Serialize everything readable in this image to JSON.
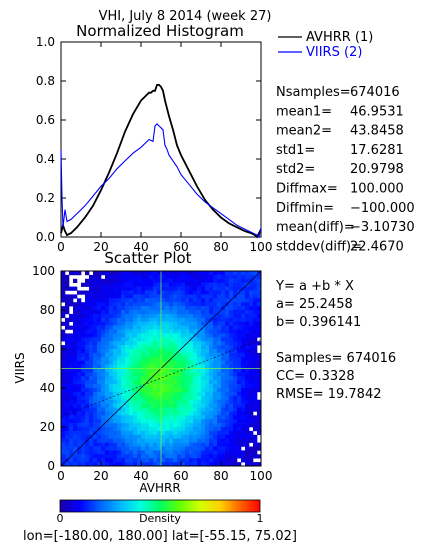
{
  "header": {
    "super_title": "VHI,  July 8 2014 (week 27)",
    "footer": "lon=[-180.00, 180.00] lat=[-55.15, 75.02]"
  },
  "chart_data": [
    {
      "type": "line",
      "title": "Normalized Histogram",
      "xlabel": "",
      "ylabel": "",
      "xlim": [
        0,
        100
      ],
      "ylim": [
        0,
        1.0
      ],
      "xticks": [
        "0",
        "20",
        "40",
        "60",
        "80",
        "100"
      ],
      "yticks": [
        "0.0",
        "0.2",
        "0.4",
        "0.6",
        "0.8",
        "1.0"
      ],
      "legend": {
        "placement": "right",
        "entries": [
          "AVHRR (1)",
          "VIIRS (2)"
        ]
      },
      "series": [
        {
          "name": "AVHRR (1)",
          "color": "#000000",
          "x": [
            0,
            1,
            2,
            3,
            5,
            8,
            12,
            16,
            20,
            24,
            28,
            32,
            36,
            40,
            42,
            44,
            45,
            46,
            47,
            48,
            49,
            50,
            51,
            52,
            54,
            56,
            58,
            60,
            64,
            68,
            72,
            76,
            80,
            84,
            88,
            92,
            95,
            97,
            98,
            99,
            100
          ],
          "values": [
            0.02,
            0.06,
            0.03,
            0.01,
            0.02,
            0.05,
            0.1,
            0.16,
            0.24,
            0.33,
            0.43,
            0.54,
            0.63,
            0.7,
            0.72,
            0.74,
            0.74,
            0.75,
            0.75,
            0.78,
            0.78,
            0.77,
            0.75,
            0.7,
            0.62,
            0.55,
            0.47,
            0.42,
            0.34,
            0.26,
            0.19,
            0.14,
            0.1,
            0.07,
            0.05,
            0.03,
            0.02,
            0.01,
            0.0,
            0.02,
            0.04
          ]
        },
        {
          "name": "VIIRS (2)",
          "color": "#0000ff",
          "x": [
            0,
            0.5,
            1,
            2,
            3,
            5,
            8,
            12,
            16,
            20,
            24,
            28,
            32,
            36,
            40,
            44,
            46,
            47,
            48,
            49,
            50,
            51,
            52,
            53,
            54,
            56,
            58,
            60,
            64,
            68,
            72,
            76,
            80,
            84,
            88,
            92,
            96,
            98,
            99,
            100
          ],
          "values": [
            0.45,
            0.2,
            0.05,
            0.14,
            0.08,
            0.09,
            0.12,
            0.16,
            0.21,
            0.26,
            0.3,
            0.35,
            0.39,
            0.43,
            0.46,
            0.5,
            0.49,
            0.57,
            0.58,
            0.57,
            0.56,
            0.55,
            0.47,
            0.45,
            0.42,
            0.39,
            0.36,
            0.32,
            0.27,
            0.22,
            0.18,
            0.15,
            0.12,
            0.09,
            0.06,
            0.04,
            0.02,
            0.01,
            0.0,
            0.05
          ]
        }
      ],
      "stats": [
        {
          "label": "Nsamples=",
          "value": "674016"
        },
        {
          "label": "mean1=",
          "value": "46.9531"
        },
        {
          "label": "mean2=",
          "value": "43.8458"
        },
        {
          "label": "std1=",
          "value": "17.6281"
        },
        {
          "label": "std2=",
          "value": "20.9798"
        },
        {
          "label": "Diffmax=",
          "value": "100.000"
        },
        {
          "label": "Diffmin=",
          "value": "−100.000"
        },
        {
          "label": "mean(diff)=",
          "value": "−3.10730"
        },
        {
          "label": "stddev(diff)=",
          "value": "22.4670"
        }
      ]
    },
    {
      "type": "heatmap",
      "title": "Scatter Plot",
      "xlabel": "AVHRR",
      "ylabel": "VIIRS",
      "xlim": [
        0,
        100
      ],
      "ylim": [
        0,
        100
      ],
      "xticks": [
        "0",
        "20",
        "40",
        "60",
        "80",
        "100"
      ],
      "yticks": [
        "0",
        "20",
        "40",
        "60",
        "80",
        "100"
      ],
      "density_center": [
        50,
        44
      ],
      "regression": {
        "a": 25.2458,
        "b": 0.396141
      },
      "stats": {
        "equation": "Y= a +b * X",
        "a_label": "a= 25.2458",
        "b_label": "b= 0.396141",
        "samples": "Samples= 674016",
        "cc": "CC=   0.3328",
        "rmse": "RMSE= 19.7842"
      },
      "colorbar": {
        "label": "Density",
        "min_label": "0",
        "max_label": "1",
        "colors": [
          "#1a00a8",
          "#0000ff",
          "#0064ff",
          "#00b4ff",
          "#00ffe0",
          "#00ff64",
          "#64ff00",
          "#d2ff00",
          "#ffd200",
          "#ff6400",
          "#ff0000"
        ]
      }
    }
  ]
}
